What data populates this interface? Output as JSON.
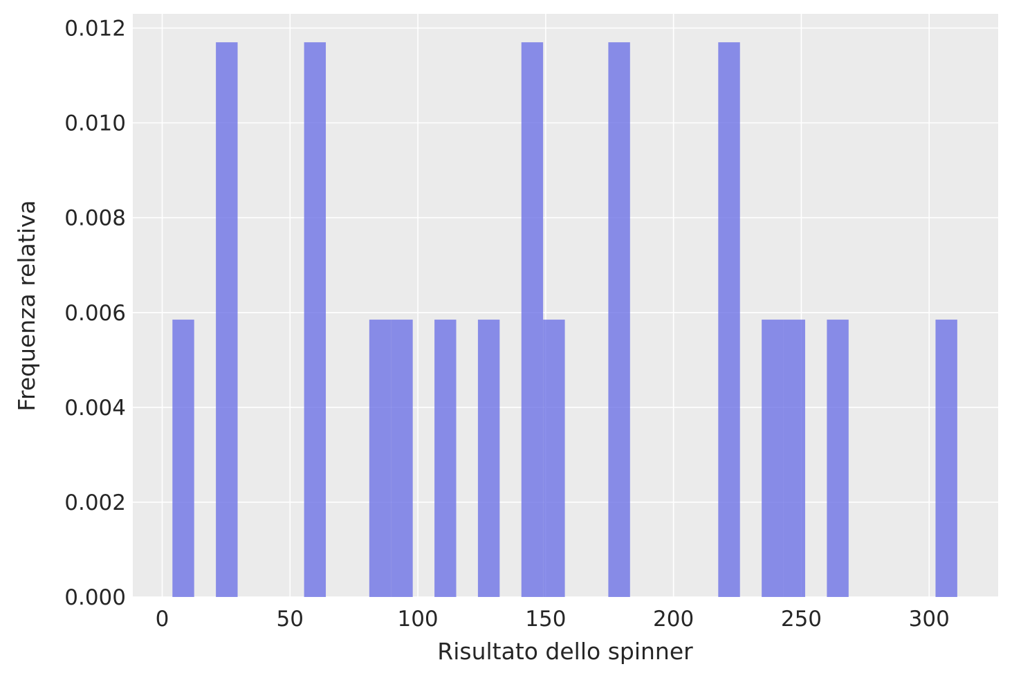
{
  "chart_data": {
    "type": "bar",
    "xlabel": "Risultato dello spinner",
    "ylabel": "Frequenza relativa",
    "xlim": [
      -11.5,
      327
    ],
    "ylim": [
      0,
      0.0123
    ],
    "xticks": [
      0,
      50,
      100,
      150,
      200,
      250,
      300
    ],
    "xtick_labels": [
      "0",
      "50",
      "100",
      "150",
      "200",
      "250",
      "300"
    ],
    "yticks": [
      0,
      0.002,
      0.004,
      0.006,
      0.008,
      0.01,
      0.012
    ],
    "ytick_labels": [
      "0.000",
      "0.002",
      "0.004",
      "0.006",
      "0.008",
      "0.010",
      "0.012"
    ],
    "grid": true,
    "bar_color": "#6a6fe6",
    "background": "#ebebeb",
    "bars": [
      {
        "x0": 4,
        "x1": 12.5,
        "value": 0.00585
      },
      {
        "x0": 21,
        "x1": 29.5,
        "value": 0.0117
      },
      {
        "x0": 55.5,
        "x1": 64,
        "value": 0.0117
      },
      {
        "x0": 81,
        "x1": 89.5,
        "value": 0.00585
      },
      {
        "x0": 89.5,
        "x1": 98,
        "value": 0.00585
      },
      {
        "x0": 106.5,
        "x1": 115,
        "value": 0.00585
      },
      {
        "x0": 123.5,
        "x1": 132,
        "value": 0.00585
      },
      {
        "x0": 140.5,
        "x1": 149,
        "value": 0.0117
      },
      {
        "x0": 149,
        "x1": 157.5,
        "value": 0.00585
      },
      {
        "x0": 174.5,
        "x1": 183,
        "value": 0.0117
      },
      {
        "x0": 217.5,
        "x1": 226,
        "value": 0.0117
      },
      {
        "x0": 234.5,
        "x1": 243,
        "value": 0.00585
      },
      {
        "x0": 243,
        "x1": 251.5,
        "value": 0.00585
      },
      {
        "x0": 260,
        "x1": 268.5,
        "value": 0.00585
      },
      {
        "x0": 302.5,
        "x1": 311,
        "value": 0.00585
      }
    ]
  }
}
